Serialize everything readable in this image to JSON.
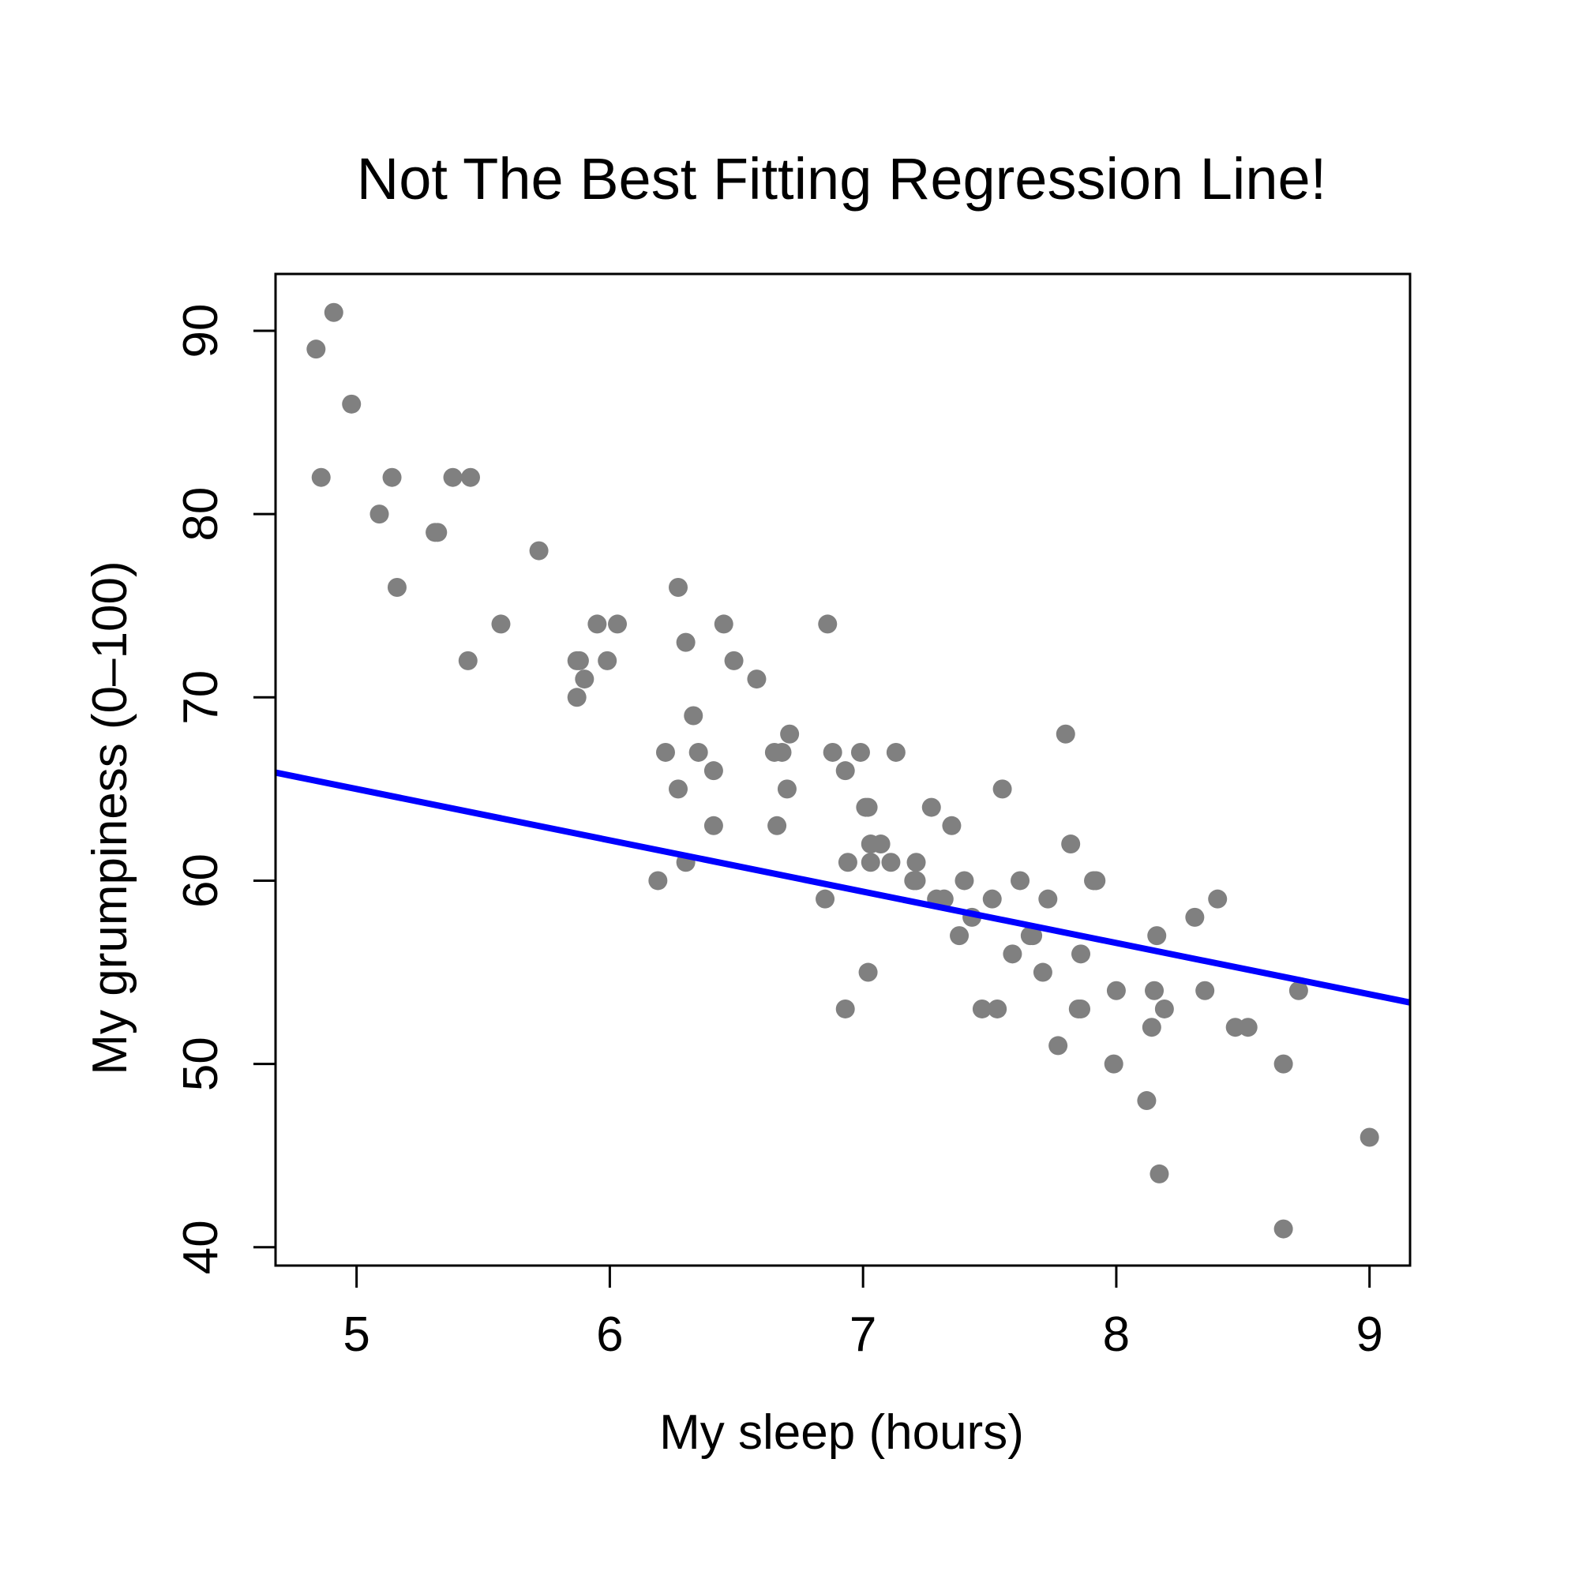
{
  "chart_data": {
    "type": "scatter",
    "title": "Not The Best Fitting Regression Line!",
    "xlabel": "My sleep (hours)",
    "ylabel": "My grumpiness (0–100)",
    "xlim": [
      4.68,
      9.16
    ],
    "ylim": [
      39.0,
      93.1
    ],
    "xticks": [
      5,
      6,
      7,
      8,
      9
    ],
    "xtick_labels": [
      "5",
      "6",
      "7",
      "8",
      "9"
    ],
    "yticks": [
      40,
      50,
      60,
      70,
      80,
      90
    ],
    "ytick_labels": [
      "40",
      "50",
      "60",
      "70",
      "80",
      "90"
    ],
    "grid": false,
    "legend": "none",
    "colors": {
      "points": "#808080",
      "line": "#0000ff",
      "frame": "#000000"
    },
    "points": {
      "x": [
        4.84,
        4.91,
        4.98,
        4.86,
        5.09,
        5.14,
        5.16,
        5.31,
        5.32,
        5.38,
        5.45,
        5.44,
        5.57,
        5.72,
        5.87,
        5.88,
        5.9,
        5.87,
        5.95,
        5.99,
        6.03,
        6.27,
        6.3,
        6.33,
        6.22,
        6.27,
        6.35,
        6.3,
        6.19,
        6.41,
        6.41,
        6.45,
        6.49,
        6.58,
        6.65,
        6.68,
        6.71,
        6.7,
        6.66,
        6.86,
        6.88,
        6.85,
        6.93,
        6.94,
        6.93,
        6.99,
        7.01,
        7.02,
        7.03,
        7.07,
        7.03,
        7.11,
        7.13,
        7.02,
        7.2,
        7.21,
        7.21,
        7.27,
        7.29,
        7.32,
        7.35,
        7.38,
        7.4,
        7.43,
        7.47,
        7.51,
        7.53,
        7.55,
        7.59,
        7.62,
        7.66,
        7.67,
        7.71,
        7.73,
        7.77,
        7.8,
        7.82,
        7.85,
        7.86,
        7.86,
        7.91,
        7.92,
        7.99,
        8.0,
        8.12,
        8.14,
        8.15,
        8.16,
        8.17,
        8.19,
        8.31,
        8.35,
        8.4,
        8.47,
        8.52,
        8.66,
        8.66,
        8.72,
        9.0
      ],
      "y": [
        89,
        91,
        86,
        82,
        80,
        82,
        76,
        79,
        79,
        82,
        82,
        72,
        74,
        78,
        72,
        72,
        71,
        70,
        74,
        72,
        74,
        76,
        73,
        69,
        67,
        65,
        67,
        61,
        60,
        66,
        63,
        74,
        72,
        71,
        67,
        67,
        68,
        65,
        63,
        74,
        67,
        59,
        66,
        61,
        53,
        67,
        64,
        64,
        62,
        62,
        61,
        61,
        67,
        55,
        60,
        61,
        60,
        64,
        59,
        59,
        63,
        57,
        60,
        58,
        53,
        59,
        53,
        65,
        56,
        60,
        57,
        57,
        55,
        59,
        51,
        68,
        62,
        53,
        53,
        56,
        60,
        60,
        50,
        54,
        48,
        52,
        54,
        57,
        44,
        53,
        58,
        54,
        59,
        52,
        52,
        50,
        41,
        54,
        46
      ]
    },
    "regression_line": {
      "intercept": 79.0,
      "slope": -2.8
    }
  }
}
